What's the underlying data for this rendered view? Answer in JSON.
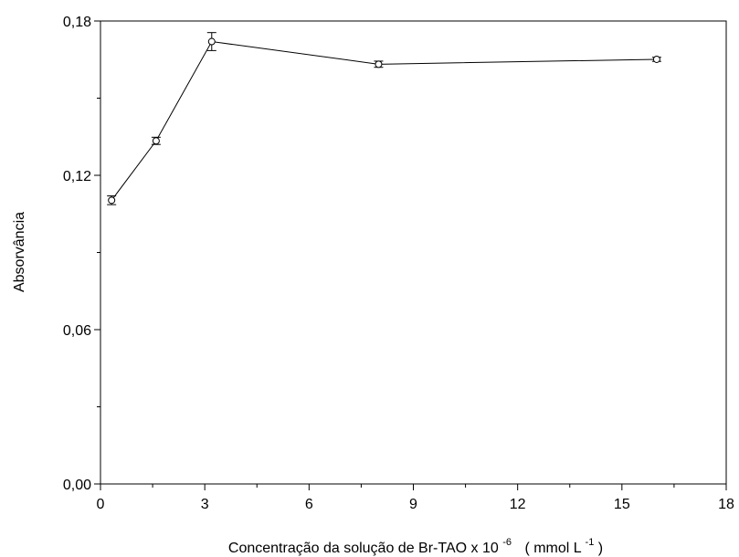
{
  "chart_data": {
    "type": "line",
    "xlabel_main": "Concentração da solução de Br-TAO x 10",
    "xlabel_exp": "-6",
    "xlabel_unit": "( mmol L",
    "xlabel_unit_exp": "-1",
    "xlabel_close": ")",
    "ylabel": "Absorvância",
    "xlim": [
      0,
      18
    ],
    "ylim": [
      0,
      0.18
    ],
    "x_ticks": [
      "0",
      "3",
      "6",
      "9",
      "12",
      "15",
      "18"
    ],
    "y_ticks": [
      "0,00",
      "0,06",
      "0,12",
      "0,18"
    ],
    "x_tick_values": [
      0,
      3,
      6,
      9,
      12,
      15,
      18
    ],
    "y_tick_values": [
      0,
      0.06,
      0.12,
      0.18
    ],
    "points": [
      {
        "x": 0.32,
        "y": 0.1103,
        "err": 0.0017
      },
      {
        "x": 1.6,
        "y": 0.1334,
        "err": 0.0014
      },
      {
        "x": 3.2,
        "y": 0.172,
        "err": 0.0035
      },
      {
        "x": 8.0,
        "y": 0.1632,
        "err": 0.0012
      },
      {
        "x": 16.0,
        "y": 0.1651,
        "err": 0.0008
      }
    ],
    "grid": false,
    "color": "#000000"
  }
}
